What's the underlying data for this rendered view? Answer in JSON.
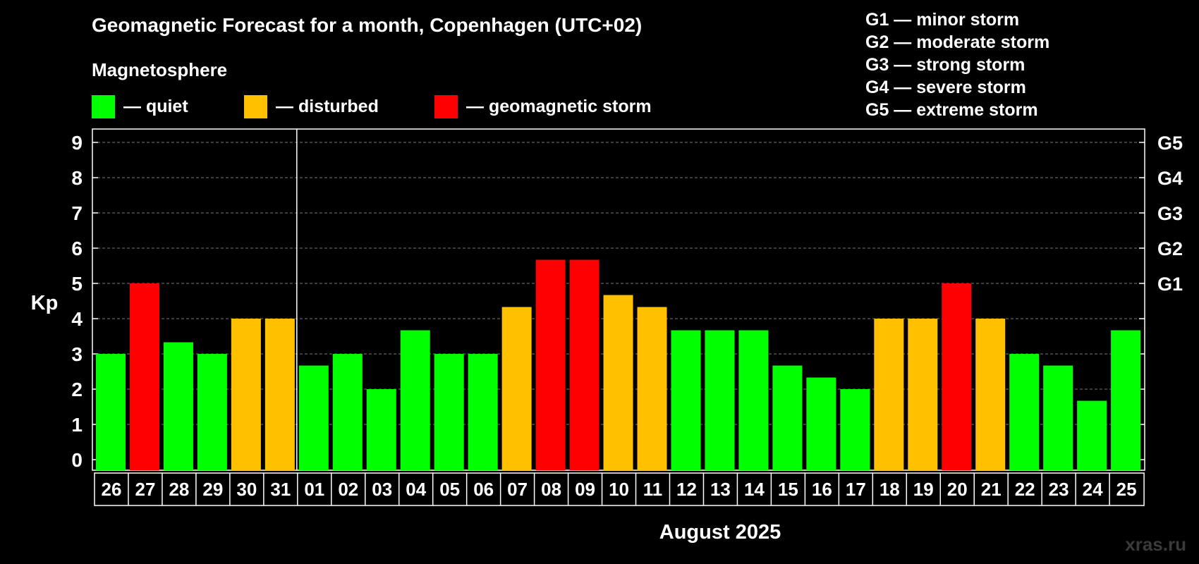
{
  "chart_data": {
    "type": "bar",
    "title": "Geomagnetic Forecast for a month, Copenhagen (UTC+02)",
    "subtitle": "Magnetosphere",
    "ylabel": "Kp",
    "xlabel": "August 2025",
    "ylim": [
      0,
      9
    ],
    "yticks": [
      "0",
      "1",
      "2",
      "3",
      "4",
      "5",
      "6",
      "7",
      "8",
      "9"
    ],
    "right_axis_labels": [
      {
        "kp": 5,
        "label": "G1"
      },
      {
        "kp": 6,
        "label": "G2"
      },
      {
        "kp": 7,
        "label": "G3"
      },
      {
        "kp": 8,
        "label": "G4"
      },
      {
        "kp": 9,
        "label": "G5"
      }
    ],
    "grid": true,
    "categories": [
      "26",
      "27",
      "28",
      "29",
      "30",
      "31",
      "01",
      "02",
      "03",
      "04",
      "05",
      "06",
      "07",
      "08",
      "09",
      "10",
      "11",
      "12",
      "13",
      "14",
      "15",
      "16",
      "17",
      "18",
      "19",
      "20",
      "21",
      "22",
      "23",
      "24",
      "25"
    ],
    "values": [
      3,
      5,
      3.33,
      3,
      4,
      4,
      2.67,
      3,
      2,
      3.67,
      3,
      3,
      4.33,
      5.67,
      5.67,
      4.67,
      4.33,
      3.67,
      3.67,
      3.67,
      2.67,
      2.33,
      2,
      4,
      4,
      5,
      4,
      3,
      2.67,
      1.67,
      3.67
    ],
    "status": [
      "quiet",
      "storm",
      "quiet",
      "quiet",
      "disturbed",
      "disturbed",
      "quiet",
      "quiet",
      "quiet",
      "quiet",
      "quiet",
      "quiet",
      "disturbed",
      "storm",
      "storm",
      "disturbed",
      "disturbed",
      "quiet",
      "quiet",
      "quiet",
      "quiet",
      "quiet",
      "quiet",
      "disturbed",
      "disturbed",
      "storm",
      "disturbed",
      "quiet",
      "quiet",
      "quiet",
      "quiet"
    ],
    "month_divider_after_index": 5,
    "legend": [
      {
        "key": "quiet",
        "label": "— quiet",
        "color": "#00ff00"
      },
      {
        "key": "disturbed",
        "label": "— disturbed",
        "color": "#ffc000"
      },
      {
        "key": "storm",
        "label": "— geomagnetic storm",
        "color": "#ff0000"
      }
    ]
  },
  "g_scale": [
    "G1 — minor storm",
    "G2 — moderate storm",
    "G3 — strong storm",
    "G4 — severe storm",
    "G5 — extreme storm"
  ],
  "watermark": "xras.ru"
}
